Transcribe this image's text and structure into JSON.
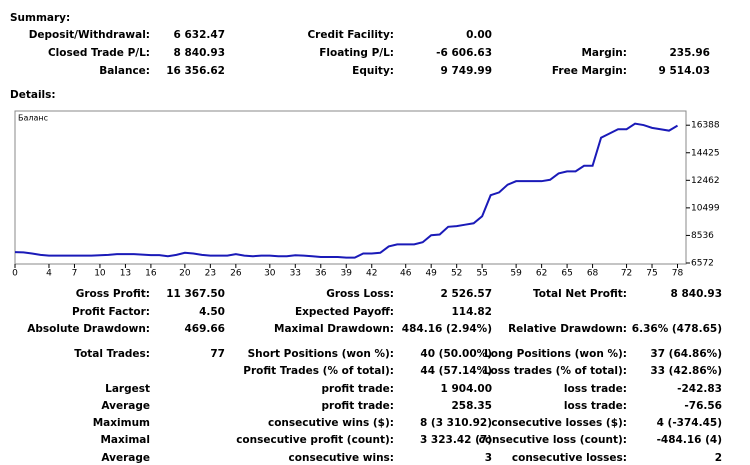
{
  "summary": {
    "heading": "Summary:",
    "rows": [
      [
        "Deposit/Withdrawal:",
        "6 632.47",
        "Credit Facility:",
        "0.00",
        null,
        null
      ],
      [
        "Closed Trade P/L:",
        "8 840.93",
        "Floating P/L:",
        "-6 606.63",
        "Margin:",
        "235.96"
      ],
      [
        "Balance:",
        "16 356.62",
        "Equity:",
        "9 749.99",
        "Free Margin:",
        "9 514.03"
      ]
    ]
  },
  "details_heading": "Details:",
  "chart_data": {
    "type": "line",
    "x": [
      0,
      1,
      2,
      3,
      4,
      5,
      6,
      7,
      8,
      9,
      10,
      11,
      12,
      13,
      14,
      15,
      16,
      17,
      18,
      19,
      20,
      21,
      22,
      23,
      24,
      25,
      26,
      27,
      28,
      29,
      30,
      31,
      32,
      33,
      34,
      35,
      36,
      37,
      38,
      39,
      40,
      41,
      42,
      43,
      44,
      45,
      46,
      47,
      48,
      49,
      50,
      51,
      52,
      53,
      54,
      55,
      56,
      57,
      58,
      59,
      60,
      61,
      62,
      63,
      64,
      65,
      66,
      67,
      68,
      69,
      70,
      71,
      72,
      73,
      74,
      75,
      76,
      77,
      78
    ],
    "series": [
      {
        "name": "Баланс",
        "color": "#1a1ab8",
        "values": [
          7350,
          7330,
          7250,
          7150,
          7100,
          7100,
          7100,
          7100,
          7100,
          7100,
          7120,
          7150,
          7200,
          7200,
          7200,
          7170,
          7130,
          7130,
          7050,
          7150,
          7300,
          7250,
          7150,
          7100,
          7100,
          7100,
          7200,
          7100,
          7050,
          7100,
          7100,
          7050,
          7050,
          7120,
          7100,
          7050,
          7000,
          7000,
          7000,
          6950,
          6950,
          7250,
          7250,
          7300,
          7750,
          7900,
          7900,
          7900,
          8050,
          8550,
          8600,
          9150,
          9200,
          9300,
          9400,
          9900,
          11400,
          11600,
          12150,
          12400,
          12400,
          12400,
          12400,
          12500,
          12950,
          13100,
          13100,
          13500,
          13500,
          15500,
          15800,
          16100,
          16100,
          16500,
          16400,
          16200,
          16100,
          16000,
          16356.62
        ]
      }
    ],
    "xlim": [
      0,
      79
    ],
    "xticks": [
      0,
      4,
      7,
      10,
      13,
      16,
      20,
      23,
      26,
      30,
      33,
      36,
      39,
      42,
      46,
      49,
      52,
      55,
      59,
      62,
      65,
      68,
      72,
      75,
      78
    ],
    "ylim": [
      6500,
      17400
    ],
    "yticks": [
      6572,
      8536,
      10499,
      12462,
      14425,
      16388
    ],
    "grid": false
  },
  "details": {
    "rows": [
      [
        "Gross Profit:",
        "11 367.50",
        "Gross Loss:",
        "2 526.57",
        "Total Net Profit:",
        "8 840.93"
      ],
      [
        "Profit Factor:",
        "4.50",
        "Expected Payoff:",
        "114.82",
        null,
        null
      ],
      [
        "Absolute Drawdown:",
        "469.66",
        "Maximal Drawdown:",
        "484.16 (2.94%)",
        "Relative Drawdown:",
        "6.36% (478.65)"
      ],
      [
        "Total Trades:",
        "77",
        "Short Positions (won %):",
        "40 (50.00%)",
        "Long Positions (won %):",
        "37 (64.86%)"
      ],
      [
        null,
        null,
        "Profit Trades (% of total):",
        "44 (57.14%)",
        "Loss trades (% of total):",
        "33 (42.86%)"
      ],
      [
        "Largest",
        null,
        "profit trade:",
        "1 904.00",
        "loss trade:",
        "-242.83"
      ],
      [
        "Average",
        null,
        "profit trade:",
        "258.35",
        "loss trade:",
        "-76.56"
      ],
      [
        "Maximum",
        null,
        "consecutive wins ($):",
        "8 (3 310.92)",
        "consecutive losses ($):",
        "4 (-374.45)"
      ],
      [
        "Maximal",
        null,
        "consecutive profit (count):",
        "3 323.42 (7)",
        "consecutive loss (count):",
        "-484.16 (4)"
      ],
      [
        "Average",
        null,
        "consecutive wins:",
        "3",
        "consecutive losses:",
        "2"
      ]
    ]
  }
}
